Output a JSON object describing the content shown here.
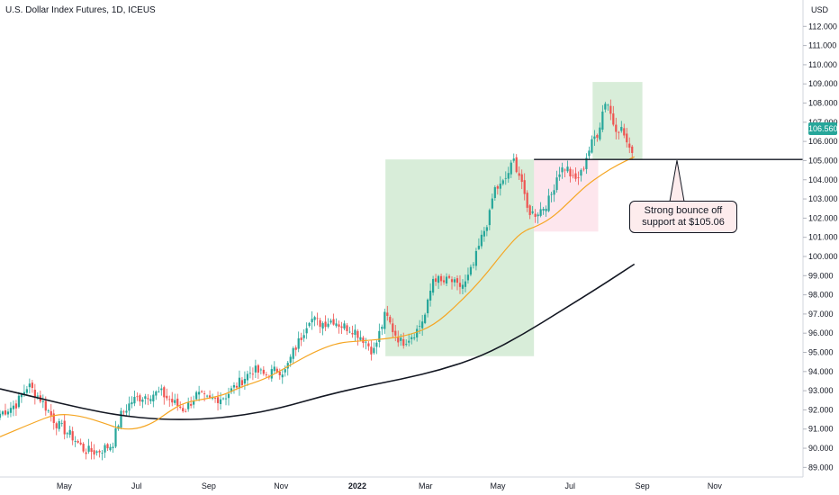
{
  "header": {
    "title": "U.S. Dollar Index Futures, 1D, ICEUS",
    "currency": "USD"
  },
  "last_price": "106.560",
  "annotation": {
    "text": "Strong bounce off support at $105.06"
  },
  "chart_data": {
    "type": "candlestick",
    "ylim": [
      88.5,
      113.0
    ],
    "y_ticks": [
      "89.000",
      "90.000",
      "91.000",
      "92.000",
      "93.000",
      "94.000",
      "95.000",
      "96.000",
      "97.000",
      "98.000",
      "99.000",
      "100.000",
      "101.000",
      "102.000",
      "103.000",
      "104.000",
      "105.000",
      "106.000",
      "107.000",
      "108.000",
      "109.000",
      "110.000",
      "111.000",
      "112.000"
    ],
    "x_ticks": [
      {
        "label": "May",
        "pos": 0.08,
        "bold": false
      },
      {
        "label": "Jul",
        "pos": 0.17,
        "bold": false
      },
      {
        "label": "Sep",
        "pos": 0.26,
        "bold": false
      },
      {
        "label": "Nov",
        "pos": 0.35,
        "bold": false
      },
      {
        "label": "2022",
        "pos": 0.445,
        "bold": true
      },
      {
        "label": "Mar",
        "pos": 0.53,
        "bold": false
      },
      {
        "label": "May",
        "pos": 0.62,
        "bold": false
      },
      {
        "label": "Jul",
        "pos": 0.71,
        "bold": false
      },
      {
        "label": "Sep",
        "pos": 0.8,
        "bold": false
      },
      {
        "label": "Nov",
        "pos": 0.89,
        "bold": false
      }
    ],
    "price_anchors": [
      [
        0.0,
        91.8
      ],
      [
        0.02,
        92.3
      ],
      [
        0.035,
        93.3
      ],
      [
        0.05,
        92.6
      ],
      [
        0.07,
        91.3
      ],
      [
        0.09,
        90.6
      ],
      [
        0.105,
        89.9
      ],
      [
        0.12,
        89.8
      ],
      [
        0.14,
        90.2
      ],
      [
        0.15,
        91.7
      ],
      [
        0.165,
        92.5
      ],
      [
        0.185,
        92.8
      ],
      [
        0.2,
        92.9
      ],
      [
        0.215,
        92.4
      ],
      [
        0.23,
        92.0
      ],
      [
        0.245,
        92.8
      ],
      [
        0.26,
        92.5
      ],
      [
        0.28,
        92.7
      ],
      [
        0.3,
        93.5
      ],
      [
        0.315,
        94.1
      ],
      [
        0.33,
        93.8
      ],
      [
        0.345,
        94.1
      ],
      [
        0.355,
        94.0
      ],
      [
        0.365,
        95.0
      ],
      [
        0.375,
        95.8
      ],
      [
        0.385,
        96.8
      ],
      [
        0.4,
        96.5
      ],
      [
        0.415,
        96.7
      ],
      [
        0.425,
        96.4
      ],
      [
        0.44,
        96.2
      ],
      [
        0.455,
        95.6
      ],
      [
        0.465,
        95.0
      ],
      [
        0.48,
        97.0
      ],
      [
        0.49,
        96.1
      ],
      [
        0.5,
        95.5
      ],
      [
        0.51,
        95.8
      ],
      [
        0.52,
        96.2
      ],
      [
        0.53,
        97.0
      ],
      [
        0.54,
        99.0
      ],
      [
        0.55,
        98.6
      ],
      [
        0.56,
        98.8
      ],
      [
        0.57,
        98.4
      ],
      [
        0.58,
        98.6
      ],
      [
        0.59,
        99.6
      ],
      [
        0.6,
        101.0
      ],
      [
        0.61,
        102.2
      ],
      [
        0.615,
        103.5
      ],
      [
        0.625,
        103.7
      ],
      [
        0.63,
        104.1
      ],
      [
        0.64,
        105.0
      ],
      [
        0.65,
        103.9
      ],
      [
        0.655,
        102.5
      ],
      [
        0.665,
        102.2
      ],
      [
        0.675,
        102.5
      ],
      [
        0.685,
        103.0
      ],
      [
        0.695,
        104.4
      ],
      [
        0.705,
        104.7
      ],
      [
        0.715,
        103.9
      ],
      [
        0.725,
        104.4
      ],
      [
        0.73,
        105.2
      ],
      [
        0.74,
        106.2
      ],
      [
        0.745,
        106.5
      ],
      [
        0.75,
        107.5
      ],
      [
        0.755,
        108.3
      ],
      [
        0.76,
        107.5
      ],
      [
        0.765,
        106.8
      ],
      [
        0.775,
        106.6
      ],
      [
        0.78,
        106.0
      ],
      [
        0.785,
        105.3
      ],
      [
        0.79,
        106.0
      ]
    ],
    "ma50": [
      [
        0.0,
        90.6
      ],
      [
        0.04,
        91.3
      ],
      [
        0.07,
        91.8
      ],
      [
        0.1,
        91.7
      ],
      [
        0.13,
        91.3
      ],
      [
        0.15,
        91.0
      ],
      [
        0.17,
        91.0
      ],
      [
        0.19,
        91.3
      ],
      [
        0.21,
        91.9
      ],
      [
        0.23,
        92.4
      ],
      [
        0.26,
        92.6
      ],
      [
        0.28,
        92.8
      ],
      [
        0.3,
        93.2
      ],
      [
        0.33,
        93.6
      ],
      [
        0.36,
        94.3
      ],
      [
        0.39,
        95.0
      ],
      [
        0.42,
        95.5
      ],
      [
        0.45,
        95.6
      ],
      [
        0.48,
        95.7
      ],
      [
        0.51,
        95.9
      ],
      [
        0.54,
        96.4
      ],
      [
        0.57,
        97.5
      ],
      [
        0.6,
        98.8
      ],
      [
        0.63,
        100.4
      ],
      [
        0.65,
        101.3
      ],
      [
        0.67,
        101.6
      ],
      [
        0.69,
        102.1
      ],
      [
        0.71,
        102.9
      ],
      [
        0.73,
        103.7
      ],
      [
        0.75,
        104.3
      ],
      [
        0.77,
        104.8
      ],
      [
        0.79,
        105.2
      ]
    ],
    "ma200": [
      [
        0.0,
        93.1
      ],
      [
        0.05,
        92.6
      ],
      [
        0.1,
        92.1
      ],
      [
        0.15,
        91.7
      ],
      [
        0.2,
        91.5
      ],
      [
        0.25,
        91.5
      ],
      [
        0.3,
        91.7
      ],
      [
        0.35,
        92.1
      ],
      [
        0.4,
        92.7
      ],
      [
        0.45,
        93.2
      ],
      [
        0.5,
        93.6
      ],
      [
        0.55,
        94.1
      ],
      [
        0.6,
        94.8
      ],
      [
        0.65,
        95.9
      ],
      [
        0.7,
        97.2
      ],
      [
        0.75,
        98.5
      ],
      [
        0.79,
        99.6
      ]
    ],
    "support_level": 105.06,
    "support_line_start": 0.665,
    "highlight_boxes": [
      {
        "x0": 0.48,
        "x1": 0.665,
        "y0": 94.8,
        "y1": 105.06,
        "color": "green"
      },
      {
        "x0": 0.665,
        "x1": 0.745,
        "y0": 101.3,
        "y1": 105.06,
        "color": "red"
      },
      {
        "x0": 0.738,
        "x1": 0.8,
        "y0": 105.06,
        "y1": 109.1,
        "color": "green"
      }
    ],
    "colors": {
      "up": "#26a69a",
      "down": "#ef5350",
      "ma50": "#f5a623",
      "ma200": "#131722",
      "green_box": "#4caf50",
      "red_box": "#f06292",
      "support": "#131722",
      "badge": "#26a69a"
    }
  }
}
